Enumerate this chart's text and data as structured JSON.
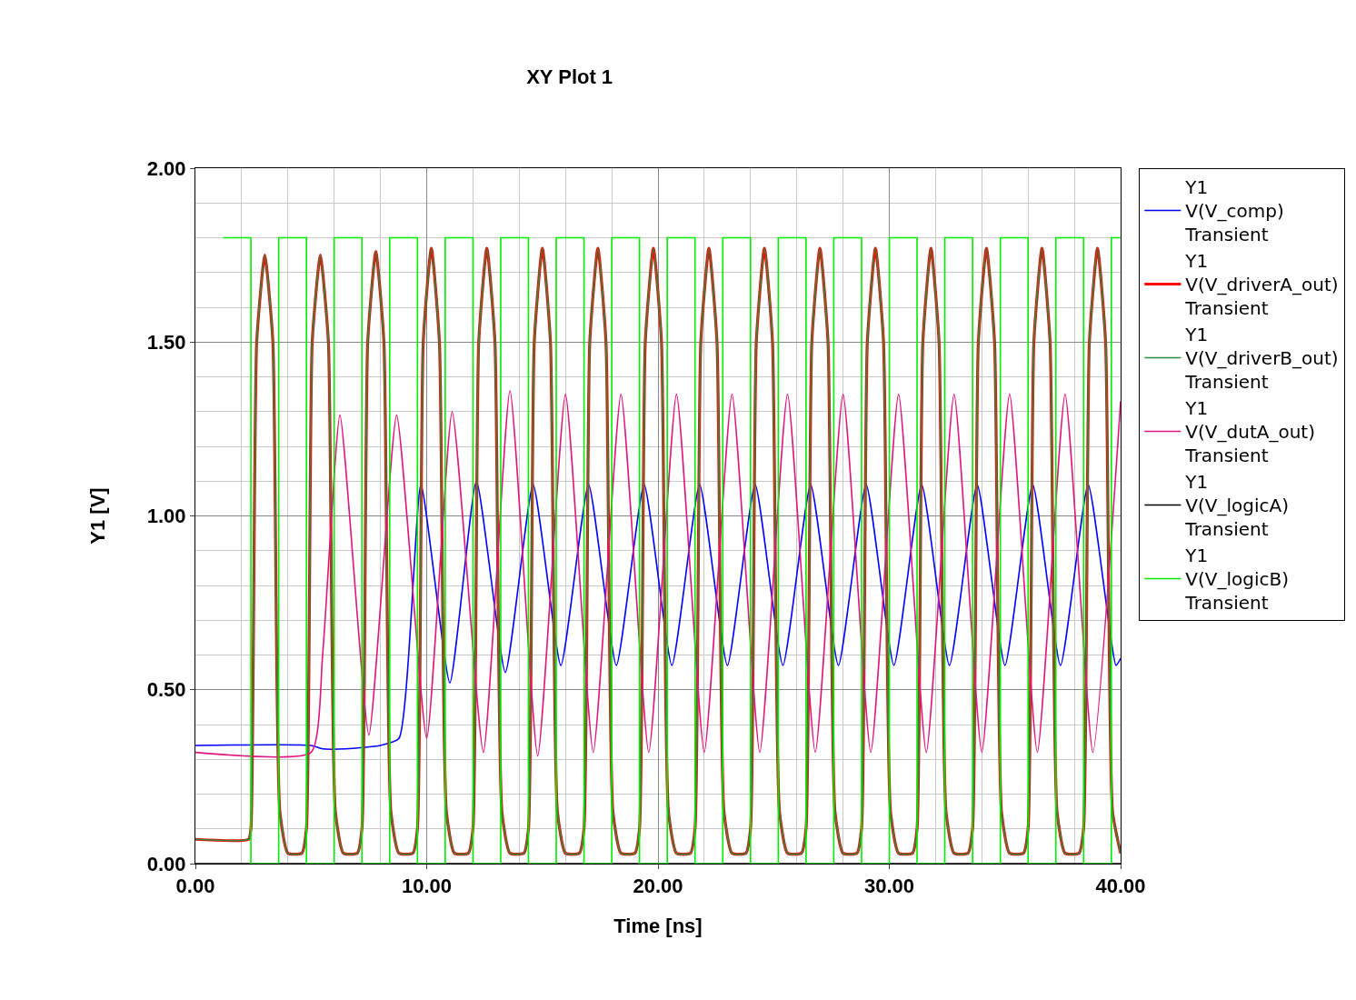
{
  "chart_data": {
    "type": "line",
    "title": "XY Plot 1",
    "xlabel": "Time [ns]",
    "ylabel": "Y1 [V]",
    "xlim": [
      0,
      40
    ],
    "ylim": [
      0,
      2
    ],
    "xticks": [
      {
        "value": 0,
        "label": "0.00"
      },
      {
        "value": 10,
        "label": "10.00"
      },
      {
        "value": 20,
        "label": "20.00"
      },
      {
        "value": 30,
        "label": "30.00"
      },
      {
        "value": 40,
        "label": "40.00"
      }
    ],
    "yticks": [
      {
        "value": 0,
        "label": "0.00"
      },
      {
        "value": 0.5,
        "label": "0.50"
      },
      {
        "value": 1,
        "label": "1.00"
      },
      {
        "value": 1.5,
        "label": "1.50"
      },
      {
        "value": 2,
        "label": "2.00"
      }
    ],
    "grid": true,
    "legend": "right",
    "series": [
      {
        "name": "Y1\nV(V_comp)\nTransient",
        "color": "#0000ff",
        "x": [
          0,
          5.0,
          5.5,
          6.5,
          8.0,
          8.8,
          9.75,
          11.0,
          12.15,
          13.4,
          14.6,
          15.8,
          17.0,
          18.2,
          19.4,
          20.6,
          21.8,
          23.0,
          24.2,
          25.4,
          26.6,
          27.8,
          29.0,
          30.2,
          31.4,
          32.6,
          33.8,
          35.0,
          36.2,
          37.4,
          38.6,
          39.8,
          40
        ],
        "values": [
          0.34,
          0.34,
          0.33,
          0.33,
          0.34,
          0.36,
          1.09,
          0.52,
          1.1,
          0.55,
          1.09,
          0.57,
          1.09,
          0.57,
          1.09,
          0.57,
          1.09,
          0.57,
          1.09,
          0.57,
          1.09,
          0.57,
          1.09,
          0.57,
          1.09,
          0.57,
          1.09,
          0.57,
          1.09,
          0.57,
          1.09,
          0.57,
          0.59
        ]
      },
      {
        "name": "Y1\nV(V_driverA_out)\nTransient",
        "color": "#ff0000",
        "x": [
          0,
          2.3,
          2.4,
          2.65,
          3.0,
          3.35,
          3.65,
          4.0,
          4.6,
          4.8,
          5.05,
          5.4,
          5.75,
          6.05,
          6.4,
          7.0,
          7.2,
          7.45,
          7.8,
          8.15,
          8.45,
          8.8,
          9.4,
          9.6,
          9.85,
          10.2,
          10.55,
          10.85,
          11.2,
          11.8,
          12,
          12.25,
          12.6,
          12.95,
          13.25,
          13.6,
          14.2,
          14.4,
          14.65,
          15.0,
          15.35,
          15.65,
          16.0,
          16.6,
          16.8,
          17.05,
          17.4,
          17.75,
          18.05,
          18.4,
          19.0,
          19.2,
          19.45,
          19.8,
          20.15,
          20.45,
          20.8,
          21.4,
          21.6,
          21.85,
          22.2,
          22.55,
          22.85,
          23.2,
          23.8,
          24,
          24.25,
          24.6,
          24.95,
          25.25,
          25.6,
          26.2,
          26.4,
          26.65,
          27.0,
          27.35,
          27.65,
          28.0,
          28.6,
          28.8,
          29.05,
          29.4,
          29.75,
          30.05,
          30.4,
          31.0,
          31.2,
          31.45,
          31.8,
          32.15,
          32.45,
          32.8,
          33.4,
          33.6,
          33.85,
          34.2,
          34.55,
          34.85,
          35.2,
          35.8,
          36,
          36.25,
          36.6,
          36.95,
          37.25,
          37.6,
          38.2,
          38.4,
          38.65,
          39.0,
          39.35,
          39.65,
          40
        ],
        "values": [
          0.07,
          0.07,
          0.1,
          1.5,
          1.75,
          1.5,
          0.15,
          0.03,
          0.03,
          0.1,
          1.5,
          1.75,
          1.5,
          0.15,
          0.03,
          0.03,
          0.1,
          1.5,
          1.76,
          1.5,
          0.15,
          0.03,
          0.03,
          0.1,
          1.5,
          1.77,
          1.5,
          0.15,
          0.03,
          0.03,
          0.1,
          1.5,
          1.77,
          1.5,
          0.15,
          0.03,
          0.03,
          0.1,
          1.5,
          1.77,
          1.5,
          0.15,
          0.03,
          0.03,
          0.1,
          1.5,
          1.77,
          1.5,
          0.15,
          0.03,
          0.03,
          0.1,
          1.5,
          1.77,
          1.5,
          0.15,
          0.03,
          0.03,
          0.1,
          1.5,
          1.77,
          1.5,
          0.15,
          0.03,
          0.03,
          0.1,
          1.5,
          1.77,
          1.5,
          0.15,
          0.03,
          0.03,
          0.1,
          1.5,
          1.77,
          1.5,
          0.15,
          0.03,
          0.03,
          0.1,
          1.5,
          1.77,
          1.5,
          0.15,
          0.03,
          0.03,
          0.1,
          1.5,
          1.77,
          1.5,
          0.15,
          0.03,
          0.03,
          0.1,
          1.5,
          1.77,
          1.5,
          0.15,
          0.03,
          0.03,
          0.1,
          1.5,
          1.77,
          1.5,
          0.15,
          0.03,
          0.03,
          0.1,
          1.5,
          1.77,
          1.5,
          0.15,
          0.03
        ]
      },
      {
        "name": "Y1\nV(V_driverB_out)\nTransient",
        "color": "#2e8b3e",
        "x": [
          0,
          2.3,
          2.4,
          2.65,
          3.0,
          3.35,
          3.65,
          4.0,
          4.6,
          4.8,
          5.05,
          5.4,
          5.75,
          6.05,
          6.4,
          7.0,
          7.2,
          7.45,
          7.8,
          8.15,
          8.45,
          8.8,
          9.4,
          9.6,
          9.85,
          10.2,
          10.55,
          10.85,
          11.2,
          11.8,
          12,
          12.25,
          12.6,
          12.95,
          13.25,
          13.6,
          14.2,
          14.4,
          14.65,
          15.0,
          15.35,
          15.65,
          16.0,
          16.6,
          16.8,
          17.05,
          17.4,
          17.75,
          18.05,
          18.4,
          19.0,
          19.2,
          19.45,
          19.8,
          20.15,
          20.45,
          20.8,
          21.4,
          21.6,
          21.85,
          22.2,
          22.55,
          22.85,
          23.2,
          23.8,
          24,
          24.25,
          24.6,
          24.95,
          25.25,
          25.6,
          26.2,
          26.4,
          26.65,
          27.0,
          27.35,
          27.65,
          28.0,
          28.6,
          28.8,
          29.05,
          29.4,
          29.75,
          30.05,
          30.4,
          31.0,
          31.2,
          31.45,
          31.8,
          32.15,
          32.45,
          32.8,
          33.4,
          33.6,
          33.85,
          34.2,
          34.55,
          34.85,
          35.2,
          35.8,
          36,
          36.25,
          36.6,
          36.95,
          37.25,
          37.6,
          38.2,
          38.4,
          38.65,
          39.0,
          39.35,
          39.65,
          40
        ],
        "values": [
          0.07,
          0.07,
          0.1,
          1.5,
          1.75,
          1.5,
          0.15,
          0.03,
          0.03,
          0.1,
          1.5,
          1.75,
          1.5,
          0.15,
          0.03,
          0.03,
          0.1,
          1.5,
          1.76,
          1.5,
          0.15,
          0.03,
          0.03,
          0.1,
          1.5,
          1.77,
          1.5,
          0.15,
          0.03,
          0.03,
          0.1,
          1.5,
          1.77,
          1.5,
          0.15,
          0.03,
          0.03,
          0.1,
          1.5,
          1.77,
          1.5,
          0.15,
          0.03,
          0.03,
          0.1,
          1.5,
          1.77,
          1.5,
          0.15,
          0.03,
          0.03,
          0.1,
          1.5,
          1.77,
          1.5,
          0.15,
          0.03,
          0.03,
          0.1,
          1.5,
          1.77,
          1.5,
          0.15,
          0.03,
          0.03,
          0.1,
          1.5,
          1.77,
          1.5,
          0.15,
          0.03,
          0.03,
          0.1,
          1.5,
          1.77,
          1.5,
          0.15,
          0.03,
          0.03,
          0.1,
          1.5,
          1.77,
          1.5,
          0.15,
          0.03,
          0.03,
          0.1,
          1.5,
          1.77,
          1.5,
          0.15,
          0.03,
          0.03,
          0.1,
          1.5,
          1.77,
          1.5,
          0.15,
          0.03,
          0.03,
          0.1,
          1.5,
          1.77,
          1.5,
          0.15,
          0.03,
          0.03,
          0.1,
          1.5,
          1.77,
          1.5,
          0.15,
          0.03
        ]
      },
      {
        "name": "Y1\nV(V_dutA_out)\nTransient",
        "color": "#e0147c",
        "x": [
          0,
          5.0,
          5.5,
          6.25,
          7.5,
          8.7,
          10.0,
          11.1,
          12.45,
          13.6,
          14.8,
          16.0,
          17.2,
          18.4,
          19.6,
          20.8,
          22.0,
          23.2,
          24.4,
          25.6,
          26.8,
          28.0,
          29.2,
          30.4,
          31.6,
          32.8,
          34.0,
          35.2,
          36.4,
          37.6,
          38.8,
          40
        ],
        "values": [
          0.32,
          0.32,
          0.6,
          1.29,
          0.37,
          1.29,
          0.36,
          1.3,
          0.32,
          1.36,
          0.31,
          1.35,
          0.32,
          1.35,
          0.32,
          1.35,
          0.32,
          1.35,
          0.32,
          1.35,
          0.32,
          1.35,
          0.32,
          1.35,
          0.32,
          1.35,
          0.32,
          1.35,
          0.32,
          1.35,
          0.32,
          1.33
        ]
      },
      {
        "name": "Y1\nV(V_logicA)\nTransient",
        "color": "#000000",
        "x": [
          0,
          40
        ],
        "values": [
          0,
          0
        ]
      },
      {
        "name": "Y1\nV(V_logicB)\nTransient",
        "color": "#00ee00",
        "type": "step",
        "x": [
          1.2,
          2.4,
          3.6,
          4.8,
          6.0,
          7.2,
          8.4,
          9.6,
          10.8,
          12.0,
          13.2,
          14.4,
          15.6,
          16.8,
          18.0,
          19.2,
          20.4,
          21.6,
          22.8,
          24.0,
          25.2,
          26.4,
          27.6,
          28.8,
          30.0,
          31.2,
          32.4,
          33.6,
          34.8,
          36.0,
          37.2,
          38.4,
          39.6,
          40
        ],
        "values": [
          1.8,
          0,
          1.8,
          0,
          1.8,
          0,
          1.8,
          0,
          1.8,
          0,
          1.8,
          0,
          1.8,
          0,
          1.8,
          0,
          1.8,
          0,
          1.8,
          0,
          1.8,
          0,
          1.8,
          0,
          1.8,
          0,
          1.8,
          0,
          1.8,
          0,
          1.8,
          0,
          1.8,
          1.8
        ]
      }
    ]
  }
}
